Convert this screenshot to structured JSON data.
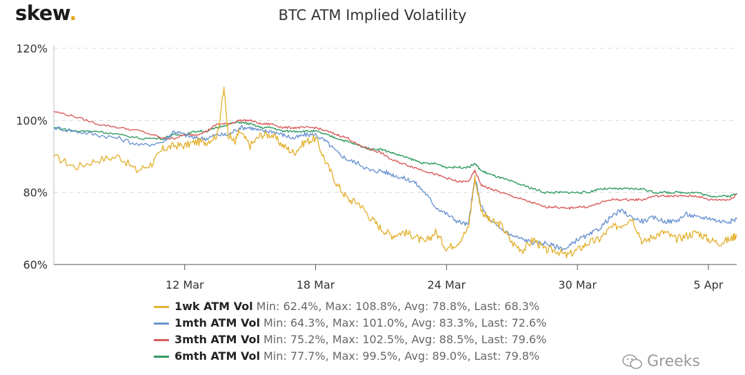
{
  "header": {
    "logo_text": "skew",
    "logo_dot": "."
  },
  "watermark": {
    "text": "Greeks",
    "icon": "wechat-icon"
  },
  "chart_data": {
    "type": "line",
    "title": "BTC ATM Implied Volatility",
    "xlabel": "",
    "ylabel": "",
    "ylim": [
      60,
      120
    ],
    "xlim": [
      0,
      31.3
    ],
    "grid": true,
    "y_ticks": [
      {
        "value": 60,
        "label": "60%"
      },
      {
        "value": 80,
        "label": "80%"
      },
      {
        "value": 100,
        "label": "100%"
      },
      {
        "value": 120,
        "label": "120%"
      }
    ],
    "x_ticks": [
      {
        "value": 6,
        "label": "12 Mar"
      },
      {
        "value": 12,
        "label": "18 Mar"
      },
      {
        "value": 18,
        "label": "24 Mar"
      },
      {
        "value": 24,
        "label": "30 Mar"
      },
      {
        "value": 30,
        "label": "5 Apr"
      }
    ],
    "legend_position": "bottom",
    "series": [
      {
        "name": "1wk ATM Vol",
        "color": "#e3b232",
        "stats": "Min: 62.4%, Max: 108.8%, Avg: 78.8%, Last: 68.3%",
        "x": [
          0,
          1,
          2,
          3,
          3.8,
          4.5,
          5,
          5.5,
          6,
          6.5,
          7,
          7.5,
          7.8,
          8,
          8.3,
          8.5,
          9,
          9.5,
          10,
          10.5,
          11,
          11.5,
          12,
          12.5,
          13,
          13.5,
          14,
          14.5,
          15,
          15.5,
          16,
          16.5,
          17,
          17.5,
          18,
          18.5,
          19,
          19.3,
          19.6,
          20,
          20.5,
          21,
          21.5,
          22,
          22.5,
          23,
          23.5,
          24,
          24.5,
          25,
          25.5,
          26,
          26.5,
          27,
          27.5,
          28,
          28.5,
          29,
          29.5,
          30,
          30.5,
          31,
          31.3
        ],
        "values": [
          90,
          87,
          89,
          90,
          86,
          88,
          92,
          93,
          93,
          94,
          94,
          96,
          108.8,
          96,
          94,
          97,
          93,
          96,
          96,
          93,
          91,
          94,
          95,
          88,
          82,
          78,
          77,
          73,
          70,
          68,
          69,
          68,
          66,
          69,
          64.5,
          66,
          70,
          84,
          75,
          72,
          71,
          66,
          64,
          67,
          64,
          64,
          62.4,
          64,
          66,
          67,
          70,
          71,
          73,
          66,
          68,
          69,
          67,
          68,
          69,
          67,
          66,
          67,
          68.3
        ]
      },
      {
        "name": "1mth ATM Vol",
        "color": "#6a93d0",
        "stats": "Min: 64.3%, Max: 101.0%, Avg: 83.3%, Last: 72.6%",
        "x": [
          0,
          1,
          2,
          3,
          4,
          5,
          5.5,
          6,
          6.5,
          7,
          7.5,
          8,
          8.5,
          9,
          9.5,
          10,
          10.5,
          11,
          11.5,
          12,
          12.5,
          13,
          13.5,
          14,
          14.5,
          15,
          15.5,
          16,
          16.5,
          17,
          17.5,
          18,
          18.5,
          19,
          19.3,
          19.6,
          20,
          20.5,
          21,
          21.5,
          22,
          22.5,
          23,
          23.5,
          24,
          24.5,
          25,
          25.5,
          26,
          26.5,
          27,
          27.5,
          28,
          28.5,
          29,
          29.5,
          30,
          30.5,
          31,
          31.3
        ],
        "values": [
          98,
          97,
          96,
          95,
          93,
          94,
          97,
          96,
          95,
          95,
          96,
          96,
          98,
          98,
          97,
          97,
          96,
          95,
          96,
          96,
          94,
          91,
          89,
          88,
          86,
          86,
          85,
          84,
          83,
          80,
          76,
          74,
          72,
          71,
          84,
          76,
          72,
          70,
          68,
          67,
          66,
          66,
          65,
          64.3,
          67,
          68,
          70,
          73,
          75,
          73,
          72,
          73,
          72,
          72,
          74,
          73,
          73,
          72,
          72,
          72.6
        ]
      },
      {
        "name": "3mth ATM Vol",
        "color": "#d95b5b",
        "stats": "Min: 75.2%, Max: 102.5%, Avg: 88.5%, Last: 79.6%",
        "x": [
          0,
          1,
          2,
          3,
          4,
          5,
          5.5,
          6,
          6.5,
          7,
          7.5,
          8,
          8.5,
          9,
          9.5,
          10,
          10.5,
          11,
          11.5,
          12,
          12.5,
          13,
          13.5,
          14,
          14.5,
          15,
          15.5,
          16,
          16.5,
          17,
          17.5,
          18,
          18.5,
          19,
          19.3,
          19.6,
          20,
          20.5,
          21,
          21.5,
          22,
          22.5,
          23,
          23.5,
          24,
          24.5,
          25,
          25.5,
          26,
          26.5,
          27,
          27.5,
          28,
          28.5,
          29,
          29.5,
          30,
          30.5,
          31,
          31.3
        ],
        "values": [
          102.5,
          101,
          99,
          98,
          97,
          95,
          95,
          96,
          96,
          97,
          99,
          99,
          100,
          100,
          99,
          99,
          98,
          98,
          98,
          98,
          97,
          96,
          95,
          93,
          92,
          91,
          89,
          88,
          87,
          86,
          85,
          84,
          83,
          83,
          86,
          82,
          81,
          80,
          79,
          78,
          77,
          76,
          76,
          75.5,
          76,
          76,
          77,
          78,
          78,
          78,
          78,
          79,
          79,
          79,
          79,
          79,
          78,
          78,
          78,
          79.6
        ]
      },
      {
        "name": "6mth ATM Vol",
        "color": "#2f9a5f",
        "stats": "Min: 77.7%, Max: 99.5%, Avg: 89.0%, Last: 79.8%",
        "x": [
          0,
          1,
          2,
          3,
          4,
          5,
          5.5,
          6,
          6.5,
          7,
          7.5,
          8,
          8.5,
          9,
          9.5,
          10,
          10.5,
          11,
          11.5,
          12,
          12.5,
          13,
          13.5,
          14,
          14.5,
          15,
          15.5,
          16,
          16.5,
          17,
          17.5,
          18,
          18.5,
          19,
          19.3,
          19.6,
          20,
          20.5,
          21,
          21.5,
          22,
          22.5,
          23,
          23.5,
          24,
          24.5,
          25,
          25.5,
          26,
          26.5,
          27,
          27.5,
          28,
          28.5,
          29,
          29.5,
          30,
          30.5,
          31,
          31.3
        ],
        "values": [
          98,
          97,
          97,
          96,
          95,
          95,
          96,
          96,
          97,
          97,
          98,
          99,
          99.5,
          99,
          98,
          98,
          97,
          97,
          97,
          97,
          96,
          95,
          94,
          93,
          92,
          92,
          91,
          90,
          89,
          88,
          88,
          87,
          87,
          87,
          88,
          86,
          85,
          84,
          83,
          82,
          81,
          80,
          80,
          80,
          80,
          80,
          81,
          81,
          81,
          81,
          81,
          80,
          80,
          80,
          80,
          80,
          79,
          79,
          79,
          79.8
        ]
      }
    ]
  }
}
